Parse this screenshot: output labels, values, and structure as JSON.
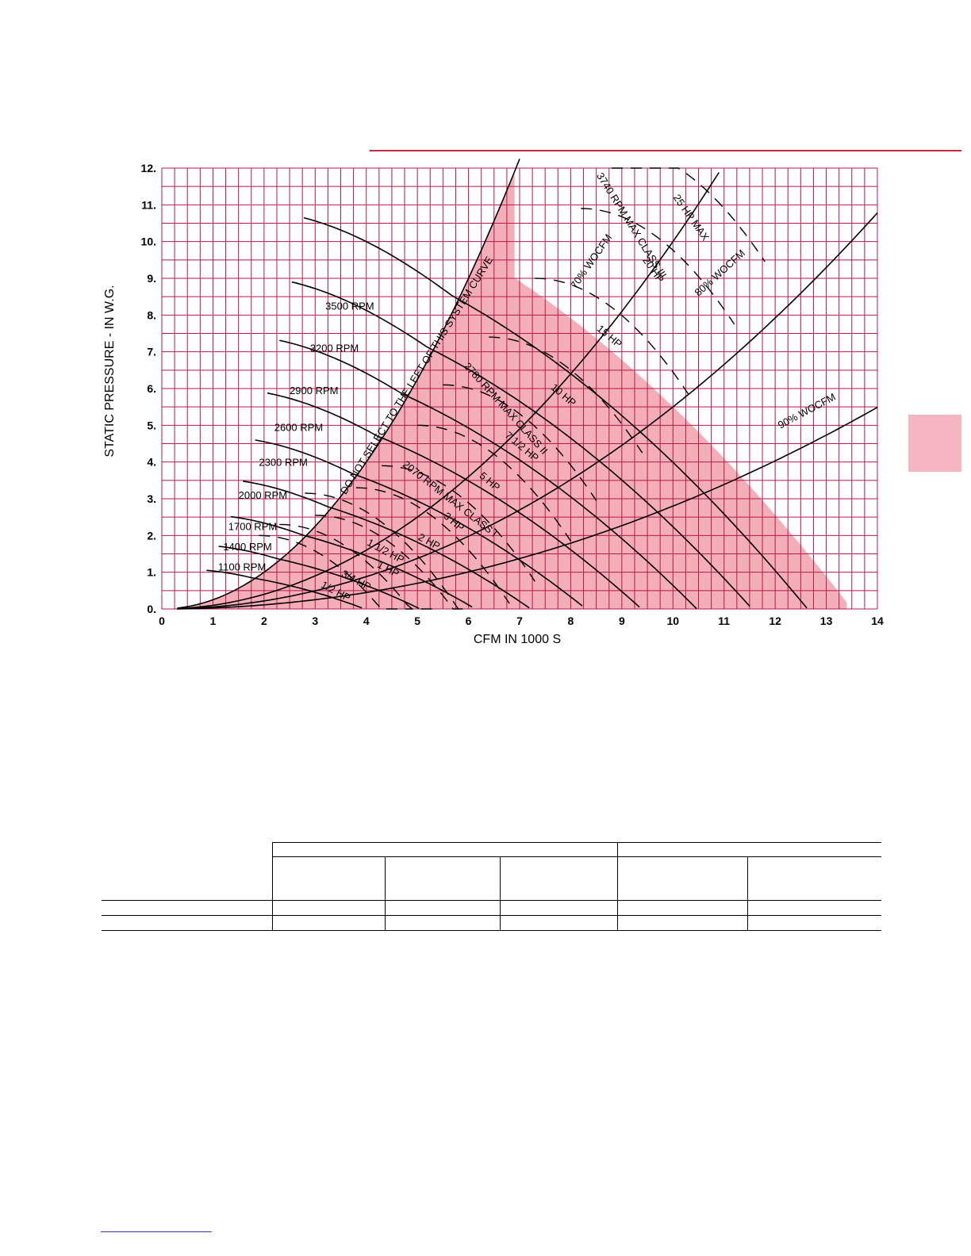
{
  "page": {
    "accent_color": "#c8283c",
    "tab_color": "#f6b6c1"
  },
  "chart_data": {
    "type": "line",
    "title": "",
    "xlabel": "CFM IN 1000 S",
    "ylabel": "STATIC PRESSURE - IN W.G.",
    "xlim": [
      0,
      14
    ],
    "ylim": [
      0,
      12
    ],
    "grid": true,
    "grid_color": "#b5184a",
    "fill_color": "#f4aeb8",
    "x_tick_labels": [
      "0",
      "1",
      "2",
      "3",
      "4",
      "5",
      "6",
      "7",
      "8",
      "9",
      "10",
      "11",
      "12",
      "13",
      "14"
    ],
    "y_tick_labels": [
      "0.",
      "1.",
      "2.",
      "3.",
      "4.",
      "5.",
      "6.",
      "7.",
      "8.",
      "9.",
      "10.",
      "11.",
      "12."
    ],
    "rpm_curves": [
      {
        "label": "1100 RPM",
        "rpm": 1100,
        "label_at": [
          1.1,
          1.05
        ]
      },
      {
        "label": "1400 RPM",
        "rpm": 1400,
        "label_at": [
          1.2,
          1.6
        ]
      },
      {
        "label": "1700 RPM",
        "rpm": 1700,
        "label_at": [
          1.3,
          2.15
        ]
      },
      {
        "label": "2000 RPM",
        "rpm": 2000,
        "label_at": [
          1.5,
          3.0
        ]
      },
      {
        "label": "2300 RPM",
        "rpm": 2300,
        "label_at": [
          1.9,
          3.9
        ]
      },
      {
        "label": "2600 RPM",
        "rpm": 2600,
        "label_at": [
          2.2,
          4.85
        ]
      },
      {
        "label": "2900 RPM",
        "rpm": 2900,
        "label_at": [
          2.5,
          5.85
        ]
      },
      {
        "label": "3200 RPM",
        "rpm": 3200,
        "label_at": [
          2.9,
          7.0
        ]
      },
      {
        "label": "3500 RPM",
        "rpm": 3500,
        "label_at": [
          3.2,
          8.15
        ]
      }
    ],
    "hp_labels": [
      {
        "label": "1/2 HP",
        "at": [
          3.1,
          0.6
        ],
        "rot": 28
      },
      {
        "label": "3/4 HP",
        "at": [
          3.5,
          0.9
        ],
        "rot": 28
      },
      {
        "label": "1 HP",
        "at": [
          4.2,
          1.15
        ],
        "rot": 28
      },
      {
        "label": "1 1/2 HP",
        "at": [
          4.0,
          1.75
        ],
        "rot": 28
      },
      {
        "label": "2 HP",
        "at": [
          5.0,
          1.9
        ],
        "rot": 28
      },
      {
        "label": "3 HP",
        "at": [
          5.5,
          2.5
        ],
        "rot": 40
      },
      {
        "label": "5 HP",
        "at": [
          6.2,
          3.6
        ],
        "rot": 40
      },
      {
        "label": "7 1/2 HP",
        "at": [
          6.7,
          4.7
        ],
        "rot": 40
      },
      {
        "label": "10 HP",
        "at": [
          7.6,
          6.0
        ],
        "rot": 40
      },
      {
        "label": "15 HP",
        "at": [
          8.5,
          7.6
        ],
        "rot": 40
      },
      {
        "label": "20 HP",
        "at": [
          9.4,
          9.5
        ],
        "rot": 55
      },
      {
        "label": "25 HP MAX",
        "at": [
          10.0,
          11.2
        ],
        "rot": 55
      }
    ],
    "system_lines": [
      {
        "label": "70% WOCFM",
        "k": 0.1,
        "label_at": [
          8.1,
          8.7
        ],
        "rot": -55
      },
      {
        "label": "80% WOCFM",
        "k": 0.055,
        "label_at": [
          10.5,
          8.5
        ],
        "rot": -42
      },
      {
        "label": "90% WOCFM",
        "k": 0.028,
        "label_at": [
          12.1,
          4.9
        ],
        "rot": -28
      }
    ],
    "max_class_labels": [
      {
        "label": "2070 RPM MAX CLASS I",
        "at": [
          4.7,
          3.9
        ],
        "rot": 38
      },
      {
        "label": "2780 RPM MAX CLASS II",
        "at": [
          5.9,
          6.6
        ],
        "rot": 48
      },
      {
        "label": "3740 RPM MAX CLASS III",
        "at": [
          8.5,
          11.8
        ],
        "rot": 58
      }
    ],
    "note": "DO NOT SELECT TO THE LEFT OF THIS SYSTEM CURVE"
  },
  "table": {
    "rows": [
      [
        "",
        "",
        "",
        "",
        "",
        ""
      ],
      [
        "",
        "",
        "",
        "",
        "",
        ""
      ]
    ]
  }
}
